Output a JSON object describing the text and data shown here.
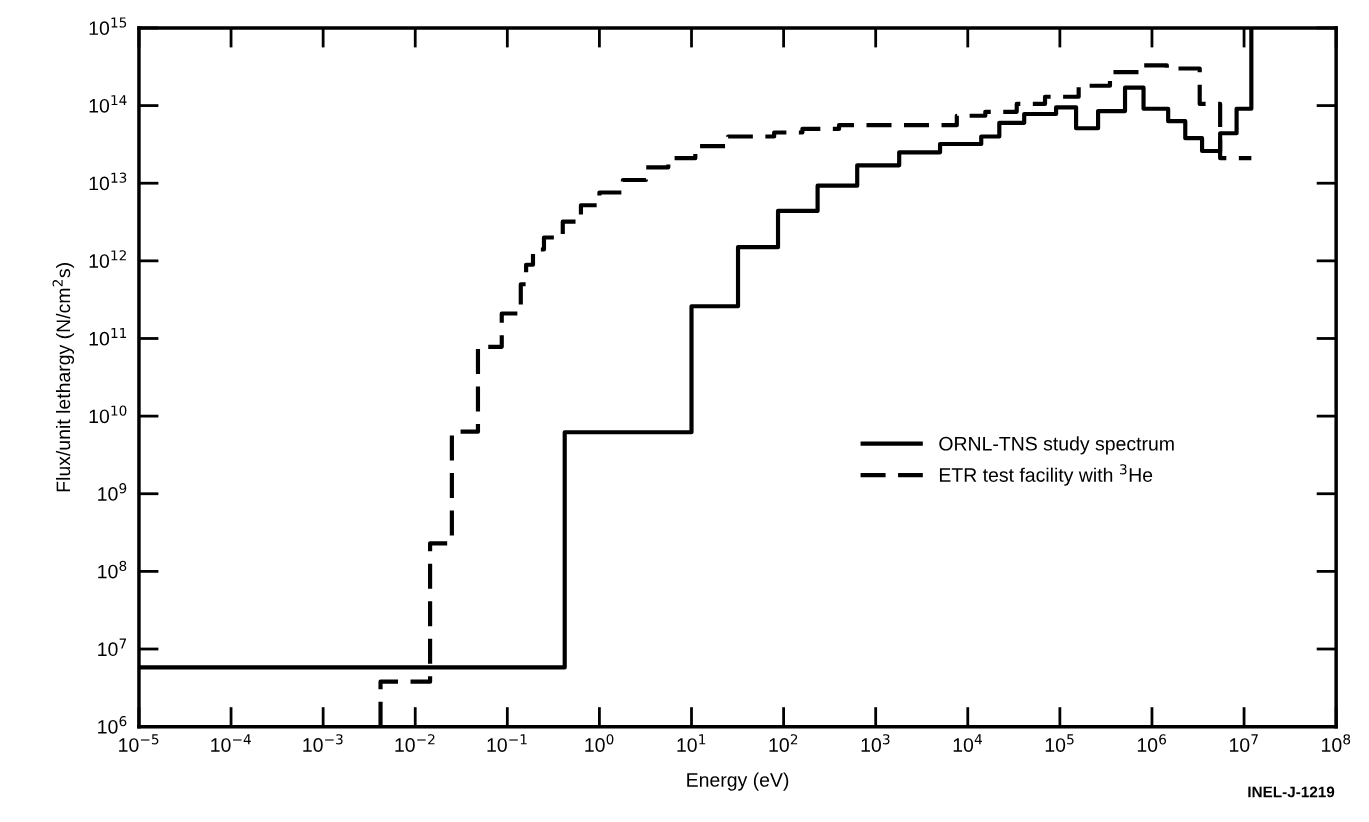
{
  "chart_data": {
    "type": "step",
    "xlabel": "Energy (eV)",
    "ylabel": "Flux/unit lethargy (N/cm$^{2}$s)",
    "log": "xy",
    "grid": false,
    "legend": "right",
    "xlim": [
      1e-05,
      100000000.0
    ],
    "ylim": [
      1000000.0,
      1000000000000000.0
    ],
    "xticks": [
      {
        "value": 1e-05,
        "label": "10$^{−5}$"
      },
      {
        "value": 0.0001,
        "label": "10$^{−4}$"
      },
      {
        "value": 0.001,
        "label": "10$^{−3}$"
      },
      {
        "value": 0.01,
        "label": "10$^{−2}$"
      },
      {
        "value": 0.1,
        "label": "10$^{−1}$"
      },
      {
        "value": 1,
        "label": "10$^{0}$"
      },
      {
        "value": 10,
        "label": "10$^{1}$"
      },
      {
        "value": 100,
        "label": "10$^{2}$"
      },
      {
        "value": 1000,
        "label": "10$^{3}$"
      },
      {
        "value": 10000,
        "label": "10$^{4}$"
      },
      {
        "value": 100000,
        "label": "10$^{5}$"
      },
      {
        "value": 1000000,
        "label": "10$^{6}$"
      },
      {
        "value": 10000000,
        "label": "10$^{7}$"
      },
      {
        "value": 100000000,
        "label": "10$^{8}$"
      }
    ],
    "yticks": [
      {
        "value": 1000000.0,
        "label": "10$^{6}$"
      },
      {
        "value": 10000000.0,
        "label": "10$^{7}$"
      },
      {
        "value": 100000000.0,
        "label": "10$^{8}$"
      },
      {
        "value": 1000000000.0,
        "label": "10$^{9}$"
      },
      {
        "value": 10000000000.0,
        "label": "10$^{10}$"
      },
      {
        "value": 100000000000.0,
        "label": "10$^{11}$"
      },
      {
        "value": 1000000000000.0,
        "label": "10$^{12}$"
      },
      {
        "value": 10000000000000.0,
        "label": "10$^{13}$"
      },
      {
        "value": 100000000000000.0,
        "label": "10$^{14}$"
      },
      {
        "value": 1000000000000000.0,
        "label": "10$^{15}$"
      }
    ],
    "series": [
      {
        "name": "ORNL-TNS study spectrum",
        "color": "#000000",
        "line_style": "solid",
        "x": [
          1e-05,
          0.42,
          10,
          32,
          87,
          234,
          630,
          1800,
          5000,
          14000,
          22000,
          41000,
          91000,
          150000,
          260000,
          510000,
          810000,
          1500000,
          2300000,
          3500000,
          5500000,
          8300000,
          12000000
        ],
        "values": [
          5800000.0,
          6200000000.0,
          260000000000.0,
          1500000000000.0,
          4400000000000.0,
          9300000000000.0,
          17000000000000.0,
          25000000000000.0,
          32000000000000.0,
          40000000000000.0,
          60000000000000.0,
          78000000000000.0,
          95000000000000.0,
          51000000000000.0,
          85000000000000.0,
          170000000000000.0,
          91000000000000.0,
          63000000000000.0,
          38000000000000.0,
          26000000000000.0,
          44000000000000.0,
          91000000000000.0,
          1000000000000000.0
        ]
      },
      {
        "name": "ETR test facility with $^{3}$He",
        "color": "#000000",
        "line_style": "dashed",
        "x": [
          0.0042,
          0.0042,
          0.0145,
          0.025,
          0.048,
          0.087,
          0.14,
          0.16,
          0.19,
          0.25,
          0.4,
          0.63,
          1,
          1.8,
          3.2,
          5.6,
          11,
          25,
          79,
          160,
          400,
          7600,
          15500,
          34000,
          69000,
          160000,
          350000,
          720000,
          1450000,
          3300000,
          5500000,
          12000000
        ],
        "values": [
          1000000.0,
          3800000.0,
          230000000.0,
          6300000000.0,
          78000000000.0,
          210000000000.0,
          500000000000.0,
          890000000000.0,
          1400000000000.0,
          2000000000000.0,
          3200000000000.0,
          5200000000000.0,
          7600000000000.0,
          11000000000000.0,
          16000000000000.0,
          21000000000000.0,
          30000000000000.0,
          40000000000000.0,
          45000000000000.0,
          50000000000000.0,
          56000000000000.0,
          74000000000000.0,
          83000000000000.0,
          105000000000000.0,
          130000000000000.0,
          180000000000000.0,
          270000000000000.0,
          330000000000000.0,
          300000000000000.0,
          105000000000000.0,
          21000000000000.0,
          21000000000000.0
        ]
      }
    ],
    "annotations": [
      "INEL-J-1219"
    ]
  }
}
